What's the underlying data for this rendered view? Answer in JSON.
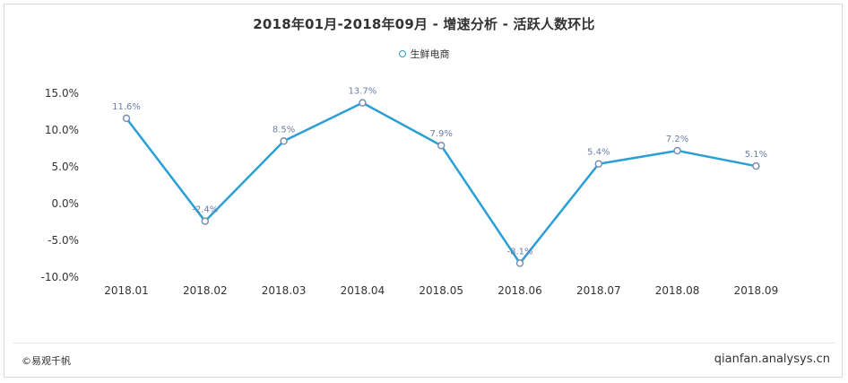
{
  "title": "2018年01月-2018年09月 - 增速分析 - 活跃人数环比",
  "footer": {
    "source": "©易观千帆",
    "site": "qianfan.analysys.cn"
  },
  "colors": {
    "line": "#2a9fd6",
    "marker_fill": "#ffffff",
    "axis_text": "#333333",
    "data_label": "#6b7fa8"
  },
  "chart_data": {
    "type": "line",
    "title": "2018年01月-2018年09月 - 增速分析 - 活跃人数环比",
    "categories": [
      "2018.01",
      "2018.02",
      "2018.03",
      "2018.04",
      "2018.05",
      "2018.06",
      "2018.07",
      "2018.08",
      "2018.09"
    ],
    "series": [
      {
        "name": "生鲜电商",
        "values": [
          11.6,
          -2.4,
          8.5,
          13.7,
          7.9,
          -8.1,
          5.4,
          7.2,
          5.1
        ],
        "labels": [
          "11.6%",
          "-2.4%",
          "8.5%",
          "13.7%",
          "7.9%",
          "-8.1%",
          "5.4%",
          "7.2%",
          "5.1%"
        ]
      }
    ],
    "yticks": [
      15,
      10,
      5,
      0,
      -5,
      -10
    ],
    "ytick_labels": [
      "15.0%",
      "10.0%",
      "5.0%",
      "0.0%",
      "-5.0%",
      "-10.0%"
    ],
    "ylim": [
      -10,
      15
    ],
    "xlabel": "",
    "ylabel": "",
    "grid": false,
    "legend_position": "top-center"
  }
}
